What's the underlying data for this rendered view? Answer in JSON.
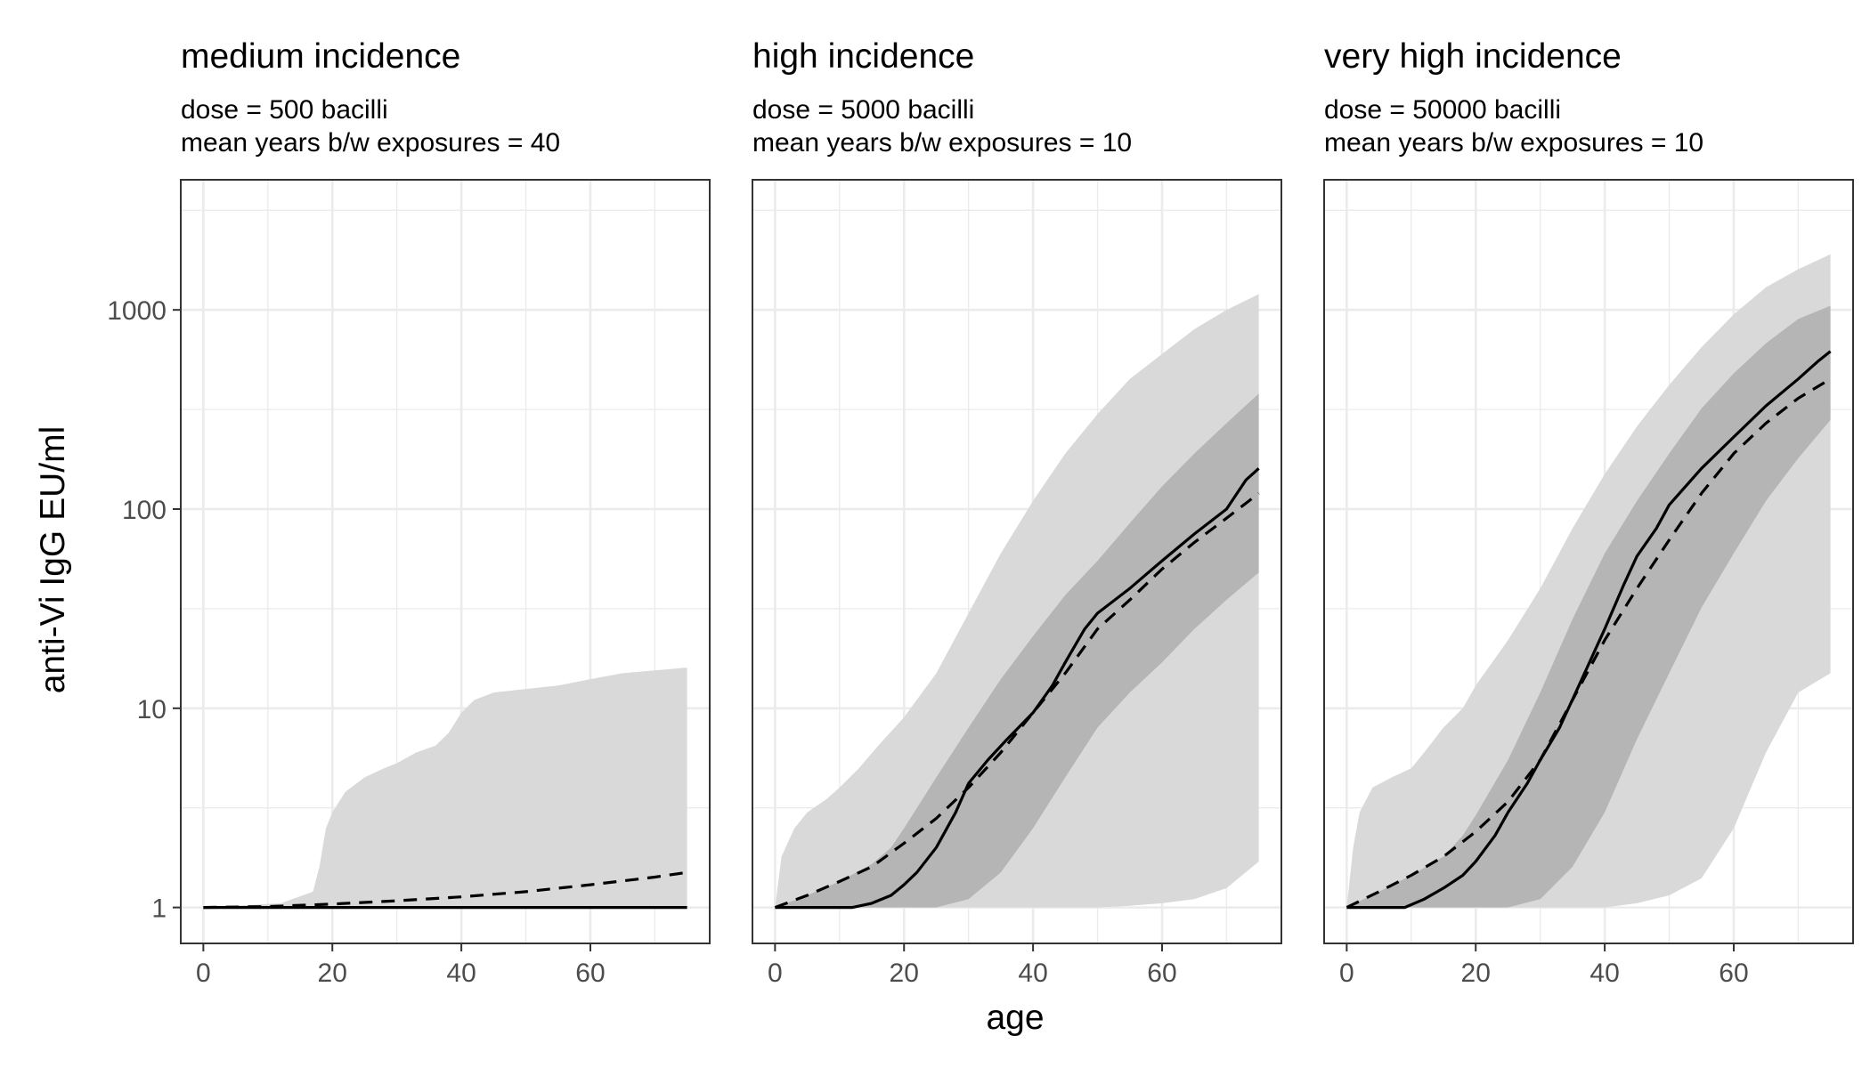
{
  "chart_data": {
    "type": "area",
    "xlabel": "age",
    "ylabel": "anti-Vi IgG EU/ml",
    "y_scale": "log10",
    "xlim": [
      -3.5,
      78.5
    ],
    "ylim": [
      0.66,
      4500
    ],
    "x_ticks": [
      0,
      20,
      40,
      60
    ],
    "y_ticks": [
      1,
      10,
      100,
      1000
    ],
    "x_tick_labels": [
      "0",
      "20",
      "40",
      "60"
    ],
    "y_tick_labels": [
      "1",
      "10",
      "100",
      "1000"
    ],
    "grid": true,
    "legend": "none",
    "colors": {
      "outer_band": "#d9d9d9",
      "inner_band": "#b5b5b5",
      "lines": "#000000",
      "grid": "#ebebeb",
      "panel_border": "#333333"
    },
    "panels": [
      {
        "title": "medium incidence",
        "subtitle_line1": "dose = 500 bacilli",
        "subtitle_line2": "mean years b/w exposures = 40",
        "outer_band": {
          "x": [
            0,
            12,
            17,
            18,
            19,
            20,
            22,
            25,
            28,
            30,
            33,
            36,
            38,
            40,
            42,
            45,
            50,
            55,
            60,
            65,
            70,
            75
          ],
          "upper": [
            1,
            1.05,
            1.2,
            1.6,
            2.5,
            3,
            3.8,
            4.5,
            5,
            5.3,
            6,
            6.5,
            7.5,
            9.5,
            11,
            12,
            12.5,
            13,
            14,
            15,
            15.5,
            16
          ],
          "lower": [
            1,
            1,
            1,
            1,
            1,
            1,
            1,
            1,
            1,
            1,
            1,
            1,
            1,
            1,
            1,
            1,
            1,
            1,
            1,
            1,
            1,
            1
          ]
        },
        "inner_band": null,
        "solid_line": {
          "x": [
            0,
            75
          ],
          "y": [
            1,
            1
          ]
        },
        "dashed_line": {
          "x": [
            0,
            10,
            20,
            30,
            40,
            50,
            60,
            70,
            75
          ],
          "y": [
            1,
            1.01,
            1.04,
            1.08,
            1.13,
            1.2,
            1.3,
            1.42,
            1.5
          ]
        }
      },
      {
        "title": "high incidence",
        "subtitle_line1": "dose = 5000 bacilli",
        "subtitle_line2": "mean years b/w exposures = 10",
        "outer_band": {
          "x": [
            0,
            1,
            3,
            5,
            8,
            10,
            13,
            16,
            20,
            25,
            30,
            35,
            40,
            45,
            50,
            55,
            60,
            65,
            70,
            75
          ],
          "upper": [
            1,
            1.8,
            2.5,
            3,
            3.5,
            4,
            5,
            6.5,
            9,
            15,
            30,
            60,
            110,
            190,
            300,
            450,
            600,
            800,
            1000,
            1200
          ],
          "lower": [
            1,
            1,
            1,
            1,
            1,
            1,
            1,
            1,
            1,
            1,
            1,
            1,
            1,
            1,
            1,
            1.02,
            1.05,
            1.1,
            1.25,
            1.7
          ]
        },
        "inner_band": {
          "x": [
            0,
            5,
            10,
            15,
            18,
            20,
            25,
            30,
            35,
            40,
            45,
            50,
            55,
            60,
            65,
            70,
            75
          ],
          "upper": [
            1,
            1.15,
            1.35,
            1.65,
            2,
            2.5,
            4.5,
            8,
            14,
            23,
            37,
            55,
            85,
            130,
            190,
            270,
            380
          ],
          "lower": [
            1,
            1,
            1,
            1,
            1,
            1,
            1,
            1.1,
            1.5,
            2.5,
            4.5,
            8,
            12,
            17,
            25,
            35,
            48
          ]
        },
        "solid_line": {
          "x": [
            0,
            12,
            15,
            18,
            20,
            22,
            25,
            28,
            30,
            33,
            36,
            40,
            43,
            45,
            48,
            50,
            55,
            60,
            65,
            70,
            73,
            75
          ],
          "y": [
            1,
            1,
            1.05,
            1.15,
            1.3,
            1.5,
            2,
            3,
            4.2,
            5.5,
            7,
            9.5,
            13,
            17,
            25,
            30,
            40,
            55,
            75,
            100,
            140,
            160
          ]
        },
        "dashed_line": {
          "x": [
            0,
            5,
            10,
            15,
            20,
            25,
            30,
            35,
            40,
            45,
            50,
            55,
            60,
            65,
            70,
            75
          ],
          "y": [
            1,
            1.15,
            1.35,
            1.6,
            2.1,
            2.8,
            4,
            6,
            9.5,
            15,
            25,
            35,
            50,
            68,
            90,
            120
          ]
        }
      },
      {
        "title": "very high incidence",
        "subtitle_line1": "dose = 50000 bacilli",
        "subtitle_line2": "mean years b/w exposures = 10",
        "outer_band": {
          "x": [
            0,
            1,
            2,
            4,
            7,
            10,
            12,
            15,
            18,
            20,
            25,
            30,
            35,
            40,
            45,
            50,
            55,
            60,
            65,
            70,
            75
          ],
          "upper": [
            1,
            2,
            3,
            4,
            4.5,
            5,
            6,
            8,
            10,
            13,
            22,
            40,
            80,
            150,
            260,
            420,
            650,
            950,
            1300,
            1600,
            1900
          ],
          "lower": [
            1,
            1,
            1,
            1,
            1,
            1,
            1,
            1,
            1,
            1,
            1,
            1,
            1,
            1,
            1.05,
            1.15,
            1.4,
            2.5,
            6,
            12,
            15
          ]
        },
        "inner_band": {
          "x": [
            0,
            5,
            10,
            15,
            18,
            20,
            25,
            30,
            35,
            40,
            45,
            50,
            55,
            60,
            65,
            70,
            75
          ],
          "upper": [
            1,
            1.2,
            1.45,
            1.8,
            2.3,
            2.9,
            5.5,
            12,
            28,
            60,
            110,
            190,
            320,
            480,
            680,
            900,
            1050
          ],
          "lower": [
            1,
            1,
            1,
            1,
            1,
            1,
            1,
            1.1,
            1.6,
            3,
            7,
            15,
            32,
            60,
            110,
            180,
            280
          ]
        },
        "solid_line": {
          "x": [
            0,
            9,
            12,
            15,
            18,
            20,
            23,
            25,
            28,
            30,
            33,
            36,
            40,
            43,
            45,
            48,
            50,
            55,
            60,
            65,
            70,
            73,
            75
          ],
          "y": [
            1,
            1,
            1.1,
            1.25,
            1.45,
            1.7,
            2.3,
            3,
            4.2,
            5.5,
            8,
            13,
            25,
            42,
            58,
            80,
            105,
            160,
            230,
            330,
            450,
            550,
            620
          ]
        },
        "dashed_line": {
          "x": [
            0,
            5,
            10,
            15,
            20,
            25,
            30,
            35,
            40,
            45,
            50,
            55,
            60,
            65,
            70,
            75
          ],
          "y": [
            1,
            1.2,
            1.45,
            1.8,
            2.4,
            3.4,
            5.5,
            11,
            22,
            40,
            70,
            120,
            190,
            270,
            360,
            450
          ]
        }
      }
    ]
  }
}
